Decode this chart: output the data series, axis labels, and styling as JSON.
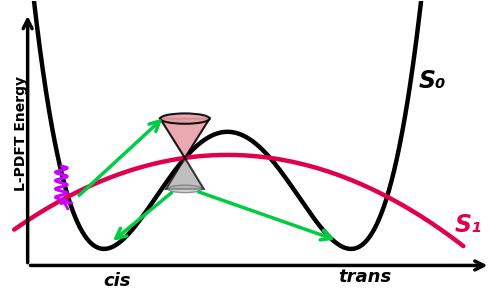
{
  "s0_color": "#000000",
  "s1_color": "#e0004e",
  "arrow_color": "#00cc44",
  "wavy_color": "#cc00ff",
  "cone_fill": "#e8a0a8",
  "cone_edge": "#000000",
  "cone_shadow": "#aaaaaa",
  "ylabel": "L-PDFT Energy",
  "s0_label": "S₀",
  "s1_label": "S₁",
  "cis_label": "cis",
  "trans_label": "trans",
  "bg_color": "#ffffff"
}
